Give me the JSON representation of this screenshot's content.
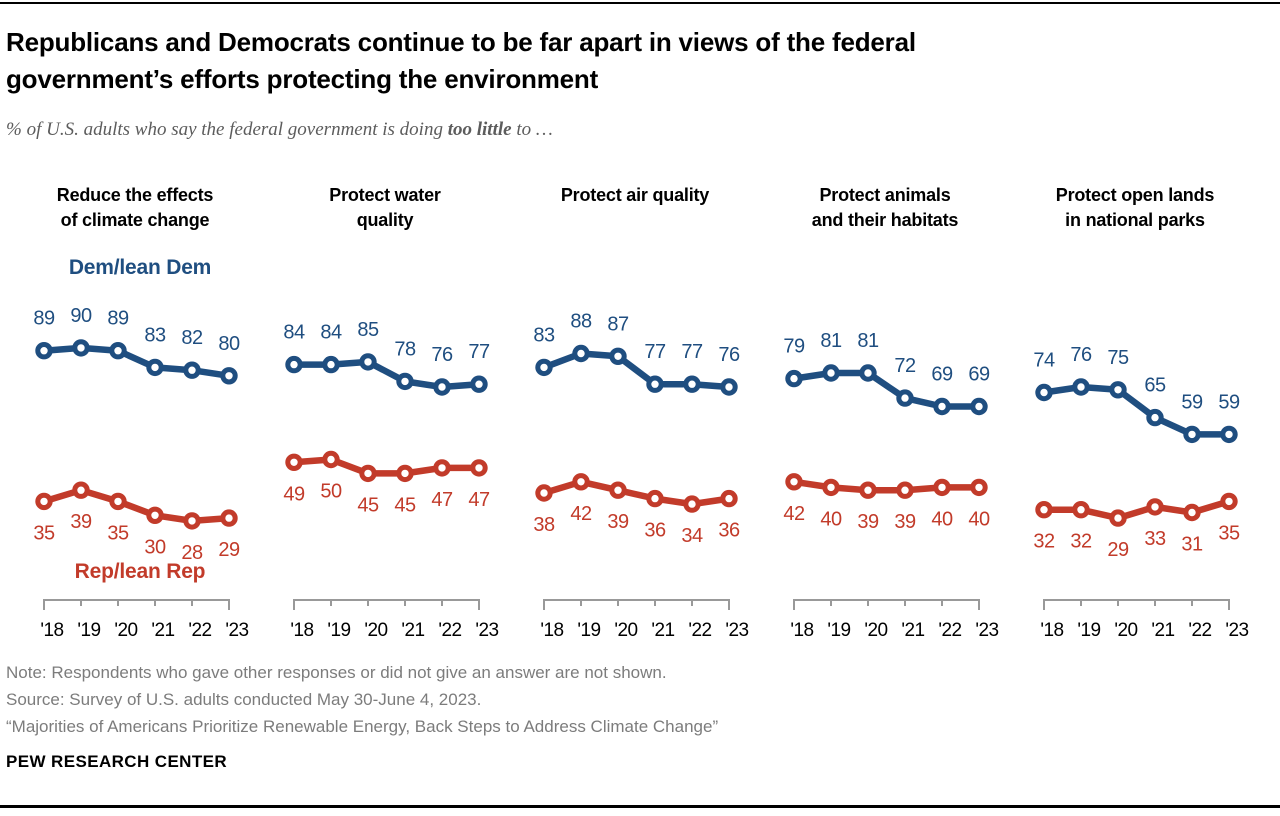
{
  "header": {
    "title_lines": [
      "Republicans and Democrats continue to be far apart in views of the federal",
      "government’s efforts protecting the environment"
    ],
    "subtitle_prefix": "% of U.S. adults who say the federal government is doing ",
    "subtitle_bold": "too little",
    "subtitle_suffix": " to …"
  },
  "legend": {
    "dem": "Dem/lean Dem",
    "rep": "Rep/lean Rep"
  },
  "colors": {
    "dem": "#1f4e80",
    "rep": "#c23b2a",
    "axis": "#999999"
  },
  "chart_data": [
    {
      "type": "line",
      "title": "Reduce the effects of climate change",
      "title_lines": [
        "Reduce the effects",
        "of climate change"
      ],
      "categories": [
        "'18",
        "'19",
        "'20",
        "'21",
        "'22",
        "'23"
      ],
      "series": [
        {
          "name": "Dem/lean Dem",
          "color_key": "dem",
          "values": [
            89,
            90,
            89,
            83,
            82,
            80
          ]
        },
        {
          "name": "Rep/lean Rep",
          "color_key": "rep",
          "values": [
            35,
            39,
            35,
            30,
            28,
            29
          ]
        }
      ],
      "ylim": [
        0,
        100
      ],
      "grid": false
    },
    {
      "type": "line",
      "title": "Protect water quality",
      "title_lines": [
        "Protect water",
        "quality"
      ],
      "categories": [
        "'18",
        "'19",
        "'20",
        "'21",
        "'22",
        "'23"
      ],
      "series": [
        {
          "name": "Dem/lean Dem",
          "color_key": "dem",
          "values": [
            84,
            84,
            85,
            78,
            76,
            77
          ]
        },
        {
          "name": "Rep/lean Rep",
          "color_key": "rep",
          "values": [
            49,
            50,
            45,
            45,
            47,
            47
          ]
        }
      ],
      "ylim": [
        0,
        100
      ],
      "grid": false
    },
    {
      "type": "line",
      "title": "Protect air quality",
      "title_lines": [
        "Protect air quality"
      ],
      "categories": [
        "'18",
        "'19",
        "'20",
        "'21",
        "'22",
        "'23"
      ],
      "series": [
        {
          "name": "Dem/lean Dem",
          "color_key": "dem",
          "values": [
            83,
            88,
            87,
            77,
            77,
            76
          ]
        },
        {
          "name": "Rep/lean Rep",
          "color_key": "rep",
          "values": [
            38,
            42,
            39,
            36,
            34,
            36
          ]
        }
      ],
      "ylim": [
        0,
        100
      ],
      "grid": false
    },
    {
      "type": "line",
      "title": "Protect animals and their habitats",
      "title_lines": [
        "Protect animals",
        "and their habitats"
      ],
      "categories": [
        "'18",
        "'19",
        "'20",
        "'21",
        "'22",
        "'23"
      ],
      "series": [
        {
          "name": "Dem/lean Dem",
          "color_key": "dem",
          "values": [
            79,
            81,
            81,
            72,
            69,
            69
          ]
        },
        {
          "name": "Rep/lean Rep",
          "color_key": "rep",
          "values": [
            42,
            40,
            39,
            39,
            40,
            40
          ]
        }
      ],
      "ylim": [
        0,
        100
      ],
      "grid": false
    },
    {
      "type": "line",
      "title": "Protect open lands in national parks",
      "title_lines": [
        "Protect open lands",
        "in national parks"
      ],
      "categories": [
        "'18",
        "'19",
        "'20",
        "'21",
        "'22",
        "'23"
      ],
      "series": [
        {
          "name": "Dem/lean Dem",
          "color_key": "dem",
          "values": [
            74,
            76,
            75,
            65,
            59,
            59
          ]
        },
        {
          "name": "Rep/lean Rep",
          "color_key": "rep",
          "values": [
            32,
            32,
            29,
            33,
            31,
            35
          ]
        }
      ],
      "ylim": [
        0,
        100
      ],
      "grid": false
    }
  ],
  "footer": {
    "note": "Note: Respondents who gave other responses or did not give an answer are not shown.",
    "source": "Source: Survey of U.S. adults conducted May 30-June 4, 2023.",
    "quote": "“Majorities of Americans Prioritize Renewable Energy, Back Steps to Address Climate Change”",
    "brand": "PEW RESEARCH CENTER"
  }
}
